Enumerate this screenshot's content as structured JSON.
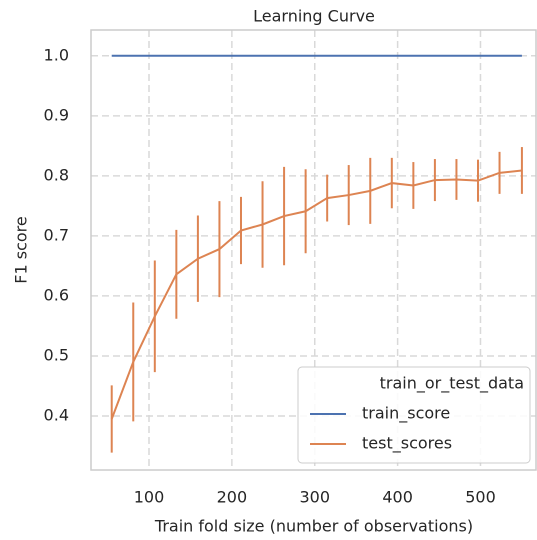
{
  "chart_data": {
    "type": "line",
    "title": "Learning Curve",
    "x_label": "Train fold size (number of observations)",
    "y_label": "F1 score",
    "x": [
      55,
      81,
      107,
      133,
      159,
      185,
      211,
      237,
      263,
      289,
      315,
      341,
      367,
      393,
      419,
      445,
      471,
      497,
      523,
      550
    ],
    "series": [
      {
        "name": "train_score",
        "color": "#4c72b0",
        "values": [
          1,
          1,
          1,
          1,
          1,
          1,
          1,
          1,
          1,
          1,
          1,
          1,
          1,
          1,
          1,
          1,
          1,
          1,
          1,
          1
        ],
        "errors": [
          0,
          0,
          0,
          0,
          0,
          0,
          0,
          0,
          0,
          0,
          0,
          0,
          0,
          0,
          0,
          0,
          0,
          0,
          0,
          0
        ]
      },
      {
        "name": "test_scores",
        "color": "#dd8452",
        "values": [
          0.395,
          0.49,
          0.566,
          0.636,
          0.662,
          0.678,
          0.709,
          0.719,
          0.733,
          0.741,
          0.763,
          0.768,
          0.775,
          0.788,
          0.784,
          0.793,
          0.794,
          0.792,
          0.805,
          0.809
        ],
        "errors": [
          0.056,
          0.099,
          0.093,
          0.074,
          0.072,
          0.08,
          0.056,
          0.072,
          0.082,
          0.07,
          0.039,
          0.05,
          0.055,
          0.042,
          0.039,
          0.035,
          0.034,
          0.035,
          0.035,
          0.039
        ]
      }
    ],
    "legend_title": "train_or_test_data",
    "legend": "lower right",
    "xlim": [
      30,
      567
    ],
    "ylim": [
      0.31,
      1.043
    ],
    "xticks": [
      100,
      200,
      300,
      400,
      500
    ],
    "yticks": [
      0.4,
      0.5,
      0.6,
      0.7,
      0.8,
      0.9,
      {
        "value": 1,
        "label": "1.0"
      }
    ],
    "grid": true
  }
}
